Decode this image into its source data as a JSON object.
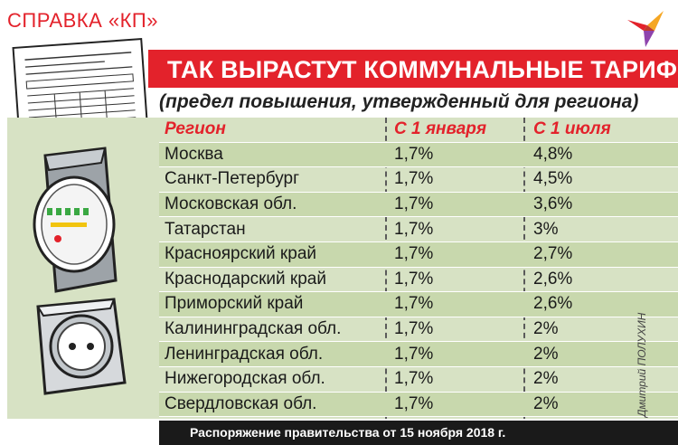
{
  "badge": "СПРАВКА «КП»",
  "title": "ТАК ВЫРАСТУТ КОММУНАЛЬНЫЕ ТАРИФЫ",
  "subtitle": "(предел повышения, утвержденный для региона)",
  "table": {
    "headers": {
      "region": "Регион",
      "jan": "С 1 января",
      "jul": "С 1 июля"
    },
    "rows": [
      {
        "region": "Москва",
        "jan": "1,7%",
        "jul": "4,8%"
      },
      {
        "region": "Санкт-Петербург",
        "jan": "1,7%",
        "jul": "4,5%"
      },
      {
        "region": "Московская обл.",
        "jan": "1,7%",
        "jul": "3,6%"
      },
      {
        "region": "Татарстан",
        "jan": "1,7%",
        "jul": "3%"
      },
      {
        "region": "Красноярский край",
        "jan": "1,7%",
        "jul": "2,7%"
      },
      {
        "region": "Краснодарский край",
        "jan": "1,7%",
        "jul": "2,6%"
      },
      {
        "region": "Приморский край",
        "jan": "1,7%",
        "jul": "2,6%"
      },
      {
        "region": "Калининградская обл.",
        "jan": "1,7%",
        "jul": "2%"
      },
      {
        "region": "Ленинградская обл.",
        "jan": "1,7%",
        "jul": "2%"
      },
      {
        "region": "Нижегородская обл.",
        "jan": "1,7%",
        "jul": "2%"
      },
      {
        "region": "Свердловская обл.",
        "jan": "1,7%",
        "jul": "2%"
      }
    ]
  },
  "footer": "Распоряжение правительства от 15 ноября 2018 г.",
  "credit": "Дмитрий ПОЛУХИН",
  "colors": {
    "accent": "#e3222b",
    "table_bg": "#d7e2c4",
    "table_alt": "#c8d8ad",
    "footer_bg": "#1a1a1a"
  },
  "icons": [
    "document-icon",
    "brand-bird-icon",
    "electric-meter-icon",
    "power-socket-icon"
  ]
}
